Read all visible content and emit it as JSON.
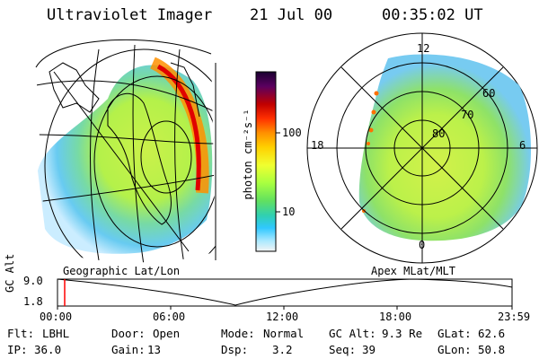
{
  "header": {
    "instrument": "Ultraviolet Imager",
    "date": "21 Jul 00",
    "time": "00:35:02 UT"
  },
  "colorbar": {
    "unit_label": "photon cm⁻²s⁻¹",
    "ticks": [
      "100",
      "10"
    ],
    "colors": [
      "#1a0030",
      "#5a0060",
      "#c00000",
      "#ff3000",
      "#ff9000",
      "#ffd000",
      "#f0ff30",
      "#a8ff40",
      "#60e060",
      "#30d0b0",
      "#30c8ff",
      "#a8e8ff",
      "#f4f4f4"
    ]
  },
  "left_panel": {
    "caption": "Geographic Lat/Lon"
  },
  "right_panel": {
    "caption": "Apex MLat/MLT",
    "mlt_labels": {
      "top": "12",
      "left": "18",
      "right": "6",
      "bottom": "0"
    },
    "lat_labels": [
      "60",
      "70",
      "80"
    ]
  },
  "altitude_plot": {
    "axis_label": "GC Alt",
    "y_ticks": [
      "9.0",
      "1.8"
    ],
    "x_ticks": [
      "00:00",
      "06:00",
      "12:00",
      "18:00",
      "23:59"
    ],
    "current_time_marker_color": "#ff0000"
  },
  "status": {
    "row1": [
      {
        "key": "Flt:",
        "value": "LBHL"
      },
      {
        "key": "Door:",
        "value": "Open"
      },
      {
        "key": "Mode:",
        "value": "Normal"
      },
      {
        "key": "GC Alt:",
        "value": "9.3 Re"
      },
      {
        "key": "GLat:",
        "value": "62.6"
      }
    ],
    "row2": [
      {
        "key": "IP:",
        "value": "36.0"
      },
      {
        "key": "Gain:",
        "value": "13"
      },
      {
        "key": "Dsp:",
        "value": "3.2"
      },
      {
        "key": "Seq:",
        "value": "39"
      },
      {
        "key": "GLon:",
        "value": "50.8"
      }
    ]
  }
}
